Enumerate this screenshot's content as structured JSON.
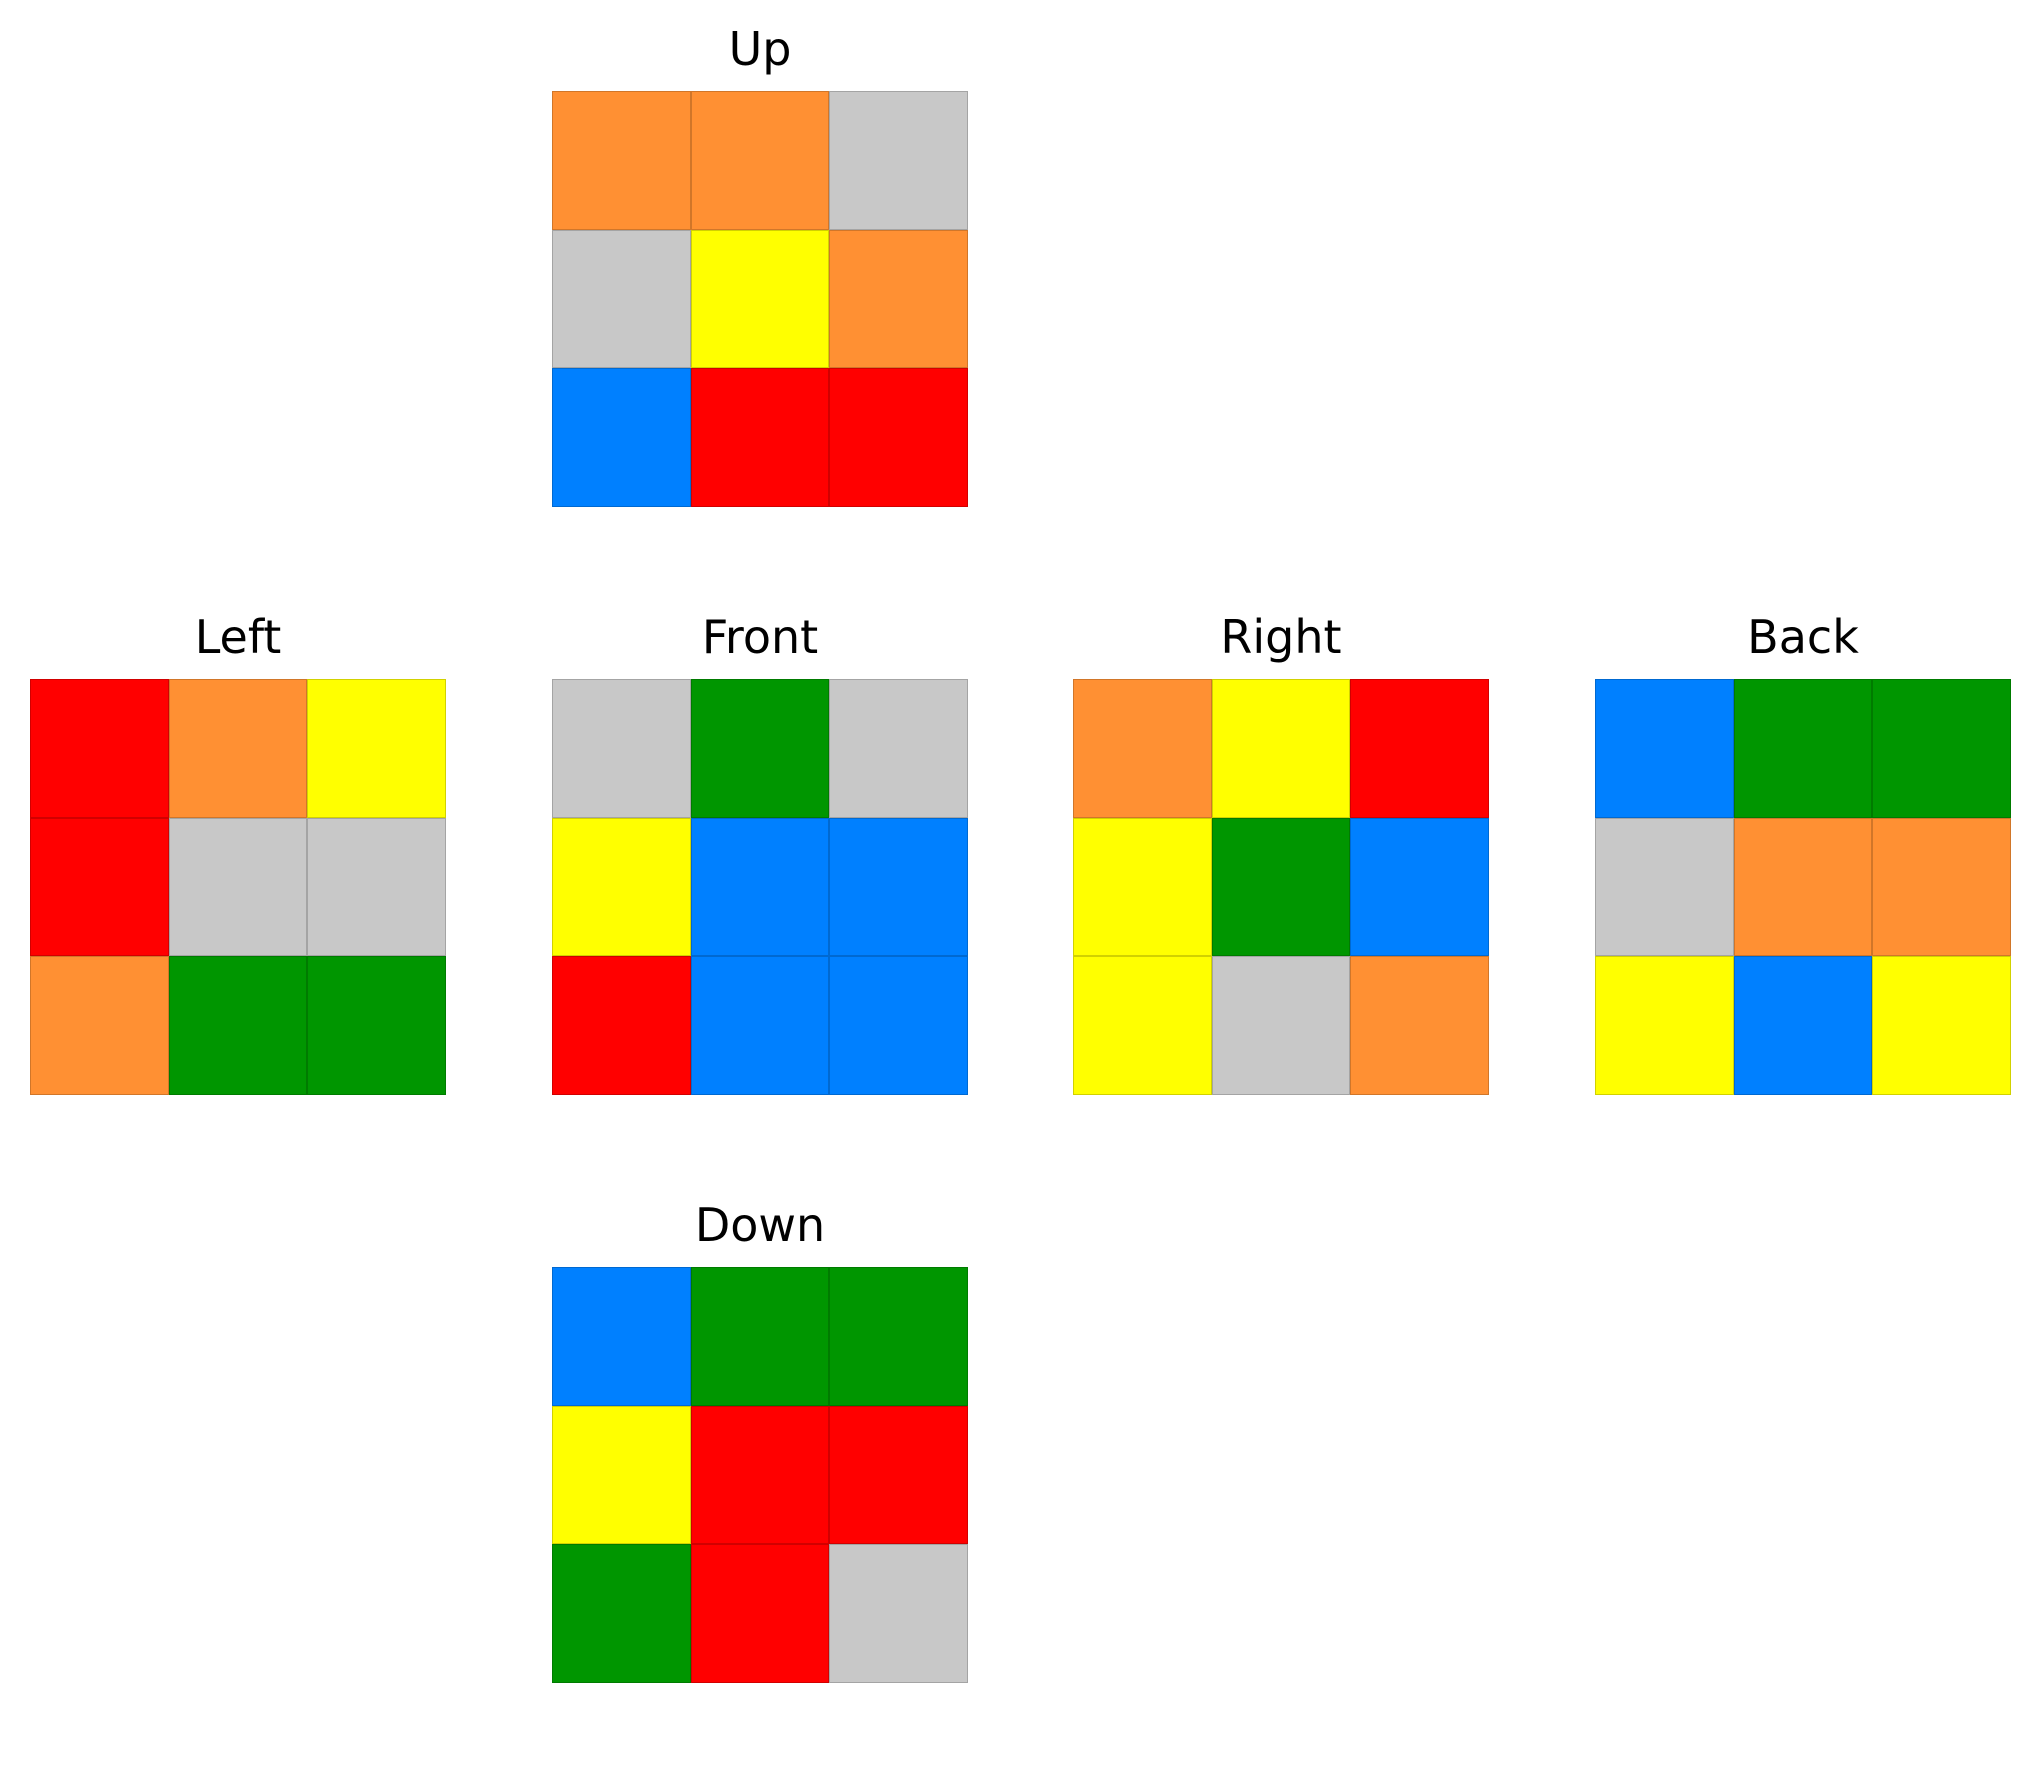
{
  "colors": {
    "orange": "#FF9033",
    "grey": "#C8C8C8",
    "yellow": "#FFFF00",
    "blue": "#0080FF",
    "red": "#FF0000",
    "green": "#009600"
  },
  "faces": {
    "up": {
      "label": "Up",
      "stickers": [
        "orange",
        "orange",
        "grey",
        "grey",
        "yellow",
        "orange",
        "blue",
        "red",
        "red"
      ]
    },
    "left": {
      "label": "Left",
      "stickers": [
        "red",
        "orange",
        "yellow",
        "red",
        "grey",
        "grey",
        "orange",
        "green",
        "green"
      ]
    },
    "front": {
      "label": "Front",
      "stickers": [
        "grey",
        "green",
        "grey",
        "yellow",
        "blue",
        "blue",
        "red",
        "blue",
        "blue"
      ]
    },
    "right": {
      "label": "Right",
      "stickers": [
        "orange",
        "yellow",
        "red",
        "yellow",
        "green",
        "blue",
        "yellow",
        "grey",
        "orange"
      ]
    },
    "back": {
      "label": "Back",
      "stickers": [
        "blue",
        "green",
        "green",
        "grey",
        "orange",
        "orange",
        "yellow",
        "blue",
        "yellow"
      ]
    },
    "down": {
      "label": "Down",
      "stickers": [
        "blue",
        "green",
        "green",
        "yellow",
        "red",
        "red",
        "green",
        "red",
        "grey"
      ]
    }
  }
}
